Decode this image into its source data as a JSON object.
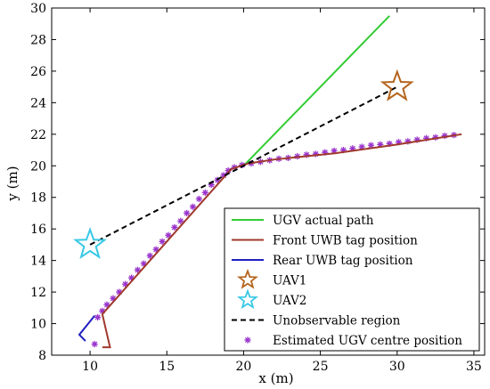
{
  "chart_data": {
    "type": "line",
    "title": "",
    "xlabel": "x (m)",
    "ylabel": "y (m)",
    "xlim": [
      7.5,
      35.7
    ],
    "ylim": [
      8,
      30
    ],
    "xticks": [
      10,
      15,
      20,
      25,
      30,
      35
    ],
    "yticks": [
      8,
      10,
      12,
      14,
      16,
      18,
      20,
      22,
      24,
      26,
      28,
      30
    ],
    "grid": false,
    "legend_position": "bottom-right",
    "colors": {
      "ugv_actual_path": "#33cc33",
      "front_tag": "#a0392c",
      "rear_tag": "#1f1fbf",
      "uav1": "#b5651d",
      "uav2": "#39c8e6",
      "unobservable": "#000000",
      "estimated": "#9933cc"
    },
    "series": [
      {
        "name": "UGV actual path",
        "kind": "line",
        "x": [
          20,
          29.5
        ],
        "y": [
          20,
          29.5
        ]
      },
      {
        "name": "Front UWB tag position",
        "kind": "line",
        "x": [
          10.8,
          11.3,
          10.8,
          19.2,
          20.3,
          22,
          26,
          30,
          34.2
        ],
        "y": [
          8.5,
          8.5,
          10.6,
          19.8,
          20.15,
          20.4,
          20.8,
          21.35,
          22.0
        ]
      },
      {
        "name": "Rear UWB tag position",
        "kind": "line",
        "x": [
          9.7,
          9.3,
          10.3
        ],
        "y": [
          8.9,
          9.3,
          10.5
        ]
      },
      {
        "name": "UAV1",
        "kind": "marker",
        "x": [
          30
        ],
        "y": [
          25
        ]
      },
      {
        "name": "UAV2",
        "kind": "marker",
        "x": [
          10
        ],
        "y": [
          15
        ]
      },
      {
        "name": "Unobservable region",
        "kind": "dashed",
        "x": [
          10,
          20,
          30
        ],
        "y": [
          15,
          20,
          25
        ]
      },
      {
        "name": "Estimated UGV centre position",
        "kind": "scatter",
        "x": [
          10.3,
          10.5,
          10.8,
          11.1,
          11.5,
          11.9,
          12.3,
          12.7,
          13.1,
          13.5,
          13.9,
          14.3,
          14.7,
          15.1,
          15.5,
          15.9,
          16.3,
          16.7,
          17.1,
          17.5,
          17.9,
          18.3,
          18.7,
          19.0,
          19.4,
          19.9,
          20.5,
          21.1,
          21.7,
          22.3,
          22.9,
          23.5,
          24.1,
          24.7,
          25.3,
          25.9,
          26.5,
          27.1,
          27.7,
          28.3,
          28.9,
          29.5,
          30.1,
          30.7,
          31.3,
          31.9,
          32.5,
          33.1,
          33.7
        ],
        "y": [
          8.7,
          10.4,
          10.8,
          11.2,
          11.6,
          12.0,
          12.5,
          12.9,
          13.4,
          13.8,
          14.3,
          14.7,
          15.2,
          15.6,
          16.1,
          16.5,
          17.0,
          17.4,
          17.9,
          18.3,
          18.8,
          19.1,
          19.4,
          19.7,
          19.9,
          20.05,
          20.15,
          20.25,
          20.35,
          20.45,
          20.5,
          20.6,
          20.7,
          20.75,
          20.85,
          20.95,
          21.0,
          21.1,
          21.2,
          21.3,
          21.35,
          21.4,
          21.5,
          21.55,
          21.65,
          21.75,
          21.8,
          21.9,
          21.95
        ]
      }
    ]
  }
}
